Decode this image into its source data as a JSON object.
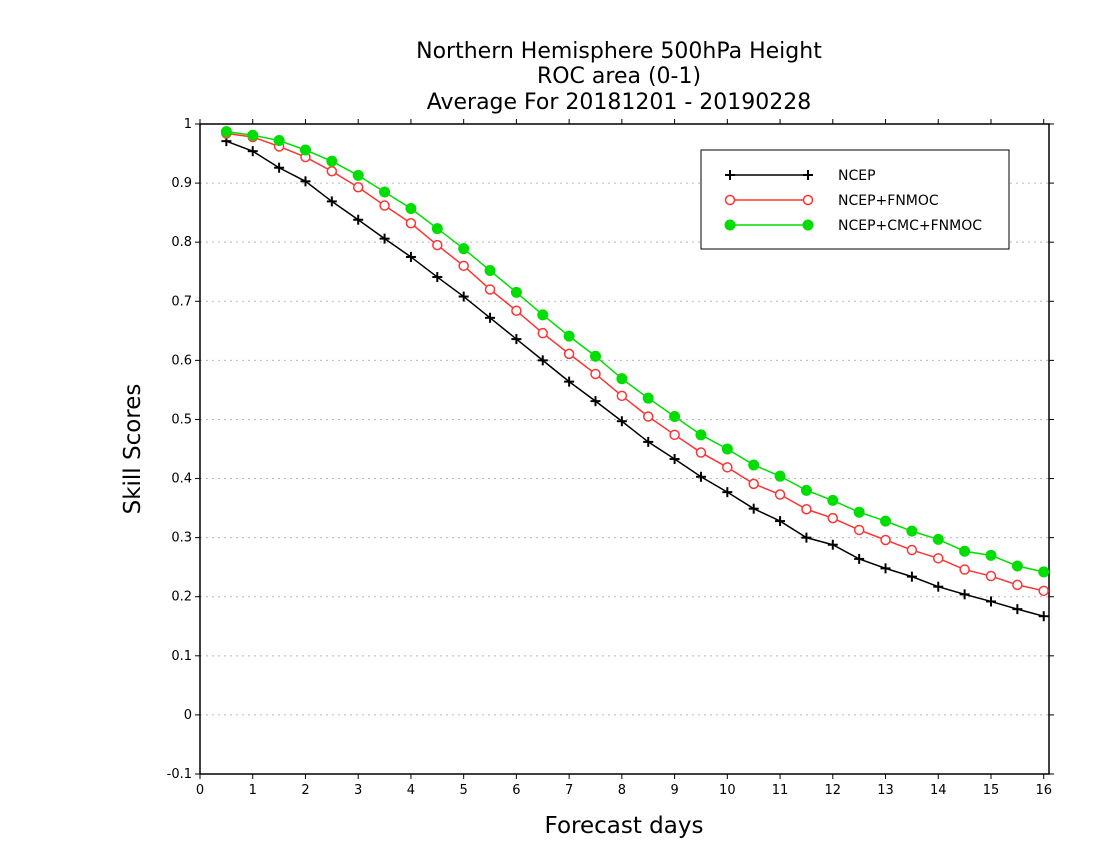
{
  "chart_data": {
    "type": "line",
    "title": [
      "Northern Hemisphere 500hPa Height",
      "ROC area (0-1)",
      "Average For 20181201 - 20190228"
    ],
    "xlabel": "Forecast days",
    "ylabel": "Skill Scores",
    "xlim": [
      0,
      16.1
    ],
    "ylim": [
      -0.1,
      1
    ],
    "xticks": [
      0,
      1,
      2,
      3,
      4,
      5,
      6,
      7,
      8,
      9,
      10,
      11,
      12,
      13,
      14,
      15,
      16
    ],
    "yticks": [
      -0.1,
      0,
      0.1,
      0.2,
      0.3,
      0.4,
      0.5,
      0.6,
      0.7,
      0.8,
      0.9,
      1
    ],
    "ytick_labels": [
      "-0.1",
      "0",
      "0.1",
      "0.2",
      "0.3",
      "0.4",
      "0.5",
      "0.6",
      "0.7",
      "0.8",
      "0.9",
      "1"
    ],
    "grid": "horizontal dotted",
    "legend_position": "top-right",
    "x": [
      0.5,
      1,
      1.5,
      2,
      2.5,
      3,
      3.5,
      4,
      4.5,
      5,
      5.5,
      6,
      6.5,
      7,
      7.5,
      8,
      8.5,
      9,
      9.5,
      10,
      10.5,
      11,
      11.5,
      12,
      12.5,
      13,
      13.5,
      14,
      14.5,
      15,
      15.5,
      16
    ],
    "series": [
      {
        "name": "NCEP",
        "color": "#000000",
        "marker": "plus",
        "values": [
          0.971,
          0.954,
          0.926,
          0.903,
          0.869,
          0.838,
          0.806,
          0.775,
          0.741,
          0.708,
          0.672,
          0.636,
          0.6,
          0.564,
          0.531,
          0.497,
          0.462,
          0.433,
          0.403,
          0.377,
          0.349,
          0.328,
          0.3,
          0.288,
          0.264,
          0.248,
          0.234,
          0.217,
          0.204,
          0.192,
          0.179,
          0.167
        ]
      },
      {
        "name": "NCEP+FNMOC",
        "color": "#ff3333",
        "marker": "open-circle",
        "values": [
          0.984,
          0.978,
          0.962,
          0.944,
          0.92,
          0.893,
          0.862,
          0.832,
          0.795,
          0.76,
          0.72,
          0.684,
          0.646,
          0.611,
          0.577,
          0.54,
          0.505,
          0.474,
          0.444,
          0.419,
          0.391,
          0.373,
          0.348,
          0.333,
          0.313,
          0.296,
          0.279,
          0.265,
          0.246,
          0.235,
          0.22,
          0.21
        ]
      },
      {
        "name": "NCEP+CMC+FNMOC",
        "color": "#00dd00",
        "marker": "filled-circle",
        "values": [
          0.987,
          0.981,
          0.972,
          0.956,
          0.937,
          0.913,
          0.885,
          0.857,
          0.823,
          0.789,
          0.752,
          0.715,
          0.677,
          0.641,
          0.607,
          0.569,
          0.536,
          0.505,
          0.474,
          0.45,
          0.423,
          0.404,
          0.38,
          0.363,
          0.343,
          0.328,
          0.311,
          0.297,
          0.277,
          0.27,
          0.252,
          0.242
        ]
      }
    ]
  }
}
